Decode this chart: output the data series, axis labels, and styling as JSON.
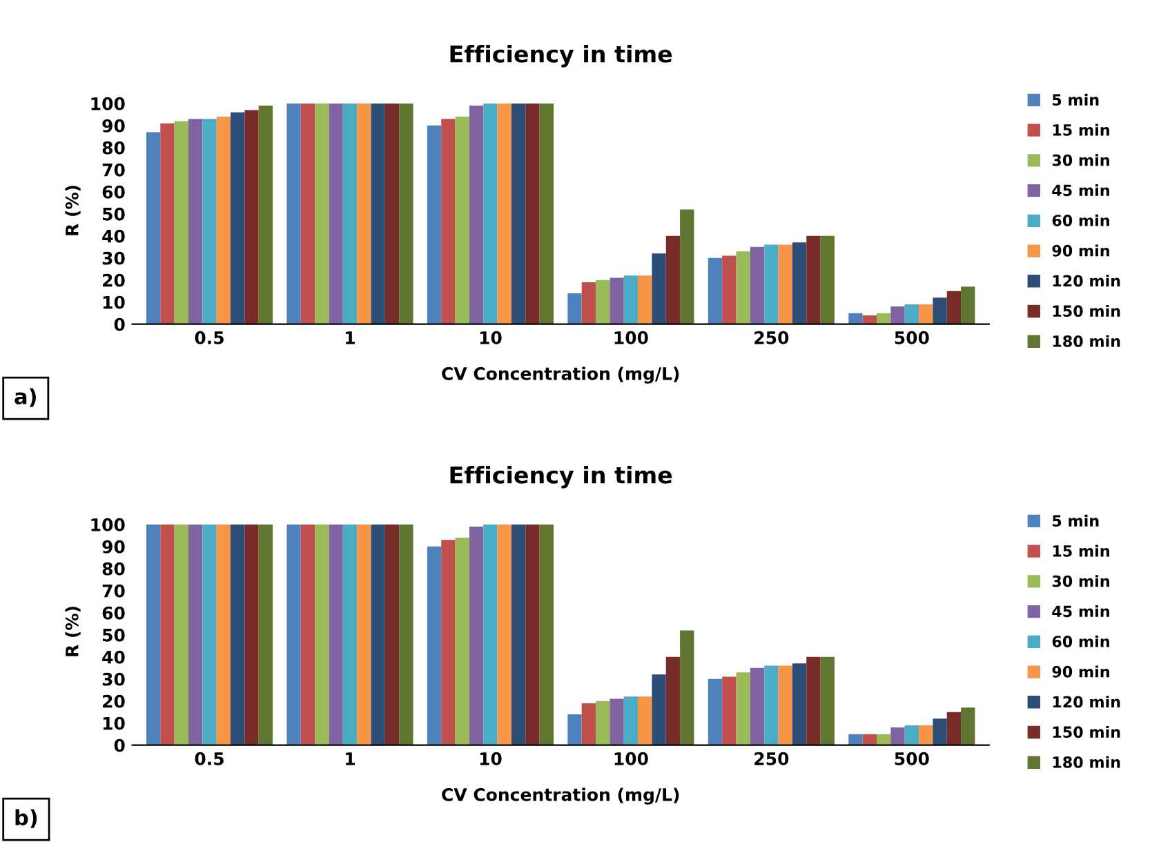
{
  "chart_data": [
    {
      "type": "bar",
      "title": "Efficiency in time",
      "xlabel": "CV Concentration (mg/L)",
      "ylabel": "R (%)",
      "annotations": [
        "a)"
      ],
      "categories": [
        "0.5",
        "1",
        "10",
        "100",
        "250",
        "500"
      ],
      "series": [
        {
          "name": "5 min",
          "color": "#4f81bd",
          "values": [
            87,
            100,
            90,
            14,
            30,
            5
          ]
        },
        {
          "name": "15 min",
          "color": "#c0504d",
          "values": [
            91,
            100,
            93,
            19,
            31,
            4
          ]
        },
        {
          "name": "30 min",
          "color": "#9bbb59",
          "values": [
            92,
            100,
            94,
            20,
            33,
            5
          ]
        },
        {
          "name": "45 min",
          "color": "#8064a2",
          "values": [
            93,
            100,
            99,
            21,
            35,
            8
          ]
        },
        {
          "name": "60 min",
          "color": "#4bacc6",
          "values": [
            93,
            100,
            100,
            22,
            36,
            9
          ]
        },
        {
          "name": "90 min",
          "color": "#f79646",
          "values": [
            94,
            100,
            100,
            22,
            36,
            9
          ]
        },
        {
          "name": "120 min",
          "color": "#2c4d75",
          "values": [
            96,
            100,
            100,
            32,
            37,
            12
          ]
        },
        {
          "name": "150 min",
          "color": "#772c2a",
          "values": [
            97,
            100,
            100,
            40,
            40,
            15
          ]
        },
        {
          "name": "180 min",
          "color": "#5f7530",
          "values": [
            99,
            100,
            100,
            52,
            40,
            17
          ]
        }
      ],
      "ylim": [
        0,
        103
      ],
      "yticks": [
        0,
        10,
        20,
        30,
        40,
        50,
        60,
        70,
        80,
        90,
        100
      ],
      "grid": false,
      "legend": "right"
    },
    {
      "type": "bar",
      "title": "Efficiency in time",
      "xlabel": "CV Concentration (mg/L)",
      "ylabel": "R (%)",
      "annotations": [
        "b)"
      ],
      "categories": [
        "0.5",
        "1",
        "10",
        "100",
        "250",
        "500"
      ],
      "series": [
        {
          "name": "5 min",
          "color": "#4f81bd",
          "values": [
            100,
            100,
            90,
            14,
            30,
            5
          ]
        },
        {
          "name": "15 min",
          "color": "#c0504d",
          "values": [
            100,
            100,
            93,
            19,
            31,
            5
          ]
        },
        {
          "name": "30 min",
          "color": "#9bbb59",
          "values": [
            100,
            100,
            94,
            20,
            33,
            5
          ]
        },
        {
          "name": "45 min",
          "color": "#8064a2",
          "values": [
            100,
            100,
            99,
            21,
            35,
            8
          ]
        },
        {
          "name": "60 min",
          "color": "#4bacc6",
          "values": [
            100,
            100,
            100,
            22,
            36,
            9
          ]
        },
        {
          "name": "90 min",
          "color": "#f79646",
          "values": [
            100,
            100,
            100,
            22,
            36,
            9
          ]
        },
        {
          "name": "120 min",
          "color": "#2c4d75",
          "values": [
            100,
            100,
            100,
            32,
            37,
            12
          ]
        },
        {
          "name": "150 min",
          "color": "#772c2a",
          "values": [
            100,
            100,
            100,
            40,
            40,
            15
          ]
        },
        {
          "name": "180 min",
          "color": "#5f7530",
          "values": [
            100,
            100,
            100,
            52,
            40,
            17
          ]
        }
      ],
      "ylim": [
        0,
        103
      ],
      "yticks": [
        0,
        10,
        20,
        30,
        40,
        50,
        60,
        70,
        80,
        90,
        100
      ],
      "grid": false,
      "legend": "right"
    }
  ]
}
